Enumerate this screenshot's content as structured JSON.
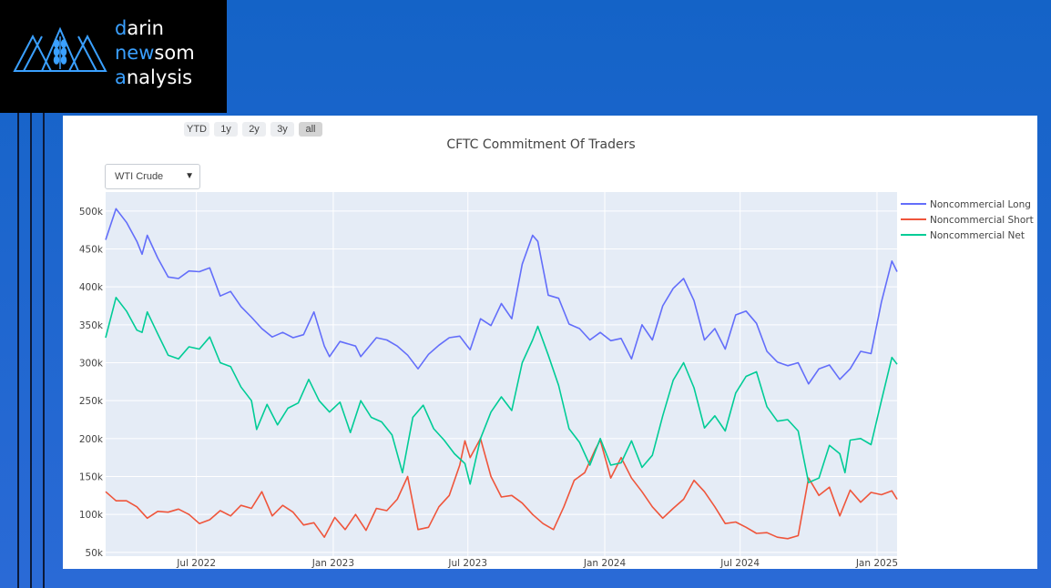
{
  "brand": {
    "line1_first": "d",
    "line1_rest": "arin",
    "line2_first": "ne",
    "line2_mid": "w",
    "line2_rest": "som",
    "line3_first": "a",
    "line3_rest": "nalysis"
  },
  "range_selector": [
    {
      "label": "YTD",
      "active": false
    },
    {
      "label": "1y",
      "active": false
    },
    {
      "label": "2y",
      "active": false
    },
    {
      "label": "3y",
      "active": false
    },
    {
      "label": "all",
      "active": true
    }
  ],
  "dropdown": {
    "selected": "WTI Crude",
    "arrow": "▼"
  },
  "colors": {
    "long": "#636efa",
    "short": "#ef553b",
    "net": "#00cc96",
    "plot_bg": "#e5ecf6"
  },
  "chart_data": {
    "type": "line",
    "title": "CFTC Commitment Of Traders",
    "xlabel": "",
    "ylabel": "",
    "ylim": [
      45000,
      525000
    ],
    "x_range": [
      "2022-03-01",
      "2025-01-28"
    ],
    "grid": true,
    "legend_position": "top-right",
    "y_ticks": [
      {
        "v": 50000,
        "label": "50k"
      },
      {
        "v": 100000,
        "label": "100k"
      },
      {
        "v": 150000,
        "label": "150k"
      },
      {
        "v": 200000,
        "label": "200k"
      },
      {
        "v": 250000,
        "label": "250k"
      },
      {
        "v": 300000,
        "label": "300k"
      },
      {
        "v": 350000,
        "label": "350k"
      },
      {
        "v": 400000,
        "label": "400k"
      },
      {
        "v": 450000,
        "label": "450k"
      },
      {
        "v": 500000,
        "label": "500k"
      }
    ],
    "x_ticks": [
      {
        "date": "2022-07-01",
        "label": "Jul 2022"
      },
      {
        "date": "2023-01-01",
        "label": "Jan 2023"
      },
      {
        "date": "2023-07-01",
        "label": "Jul 2023"
      },
      {
        "date": "2024-01-01",
        "label": "Jan 2024"
      },
      {
        "date": "2024-07-01",
        "label": "Jul 2024"
      },
      {
        "date": "2025-01-01",
        "label": "Jan 2025"
      }
    ],
    "series": [
      {
        "name": "Noncommercial Long",
        "color": "#636efa",
        "points": [
          [
            "2022-03-01",
            462000
          ],
          [
            "2022-03-15",
            503000
          ],
          [
            "2022-03-29",
            485000
          ],
          [
            "2022-04-12",
            460000
          ],
          [
            "2022-04-19",
            443000
          ],
          [
            "2022-04-26",
            468000
          ],
          [
            "2022-05-10",
            438000
          ],
          [
            "2022-05-24",
            413000
          ],
          [
            "2022-06-07",
            411000
          ],
          [
            "2022-06-21",
            421000
          ],
          [
            "2022-07-05",
            420000
          ],
          [
            "2022-07-19",
            425000
          ],
          [
            "2022-08-02",
            388000
          ],
          [
            "2022-08-16",
            394000
          ],
          [
            "2022-08-30",
            374000
          ],
          [
            "2022-09-13",
            360000
          ],
          [
            "2022-09-27",
            345000
          ],
          [
            "2022-10-11",
            334000
          ],
          [
            "2022-10-25",
            340000
          ],
          [
            "2022-11-08",
            333000
          ],
          [
            "2022-11-22",
            337000
          ],
          [
            "2022-12-06",
            367000
          ],
          [
            "2022-12-20",
            322000
          ],
          [
            "2022-12-27",
            308000
          ],
          [
            "2023-01-10",
            328000
          ],
          [
            "2023-01-31",
            322000
          ],
          [
            "2023-02-07",
            308000
          ],
          [
            "2023-02-28",
            333000
          ],
          [
            "2023-03-14",
            330000
          ],
          [
            "2023-03-28",
            322000
          ],
          [
            "2023-04-11",
            310000
          ],
          [
            "2023-04-25",
            292000
          ],
          [
            "2023-05-09",
            311000
          ],
          [
            "2023-05-23",
            323000
          ],
          [
            "2023-06-06",
            333000
          ],
          [
            "2023-06-20",
            335000
          ],
          [
            "2023-07-04",
            317000
          ],
          [
            "2023-07-18",
            358000
          ],
          [
            "2023-08-01",
            349000
          ],
          [
            "2023-08-15",
            378000
          ],
          [
            "2023-08-29",
            358000
          ],
          [
            "2023-09-12",
            430000
          ],
          [
            "2023-09-26",
            468000
          ],
          [
            "2023-10-03",
            460000
          ],
          [
            "2023-10-17",
            389000
          ],
          [
            "2023-10-31",
            385000
          ],
          [
            "2023-11-14",
            351000
          ],
          [
            "2023-11-28",
            345000
          ],
          [
            "2023-12-12",
            330000
          ],
          [
            "2023-12-26",
            340000
          ],
          [
            "2024-01-09",
            329000
          ],
          [
            "2024-01-23",
            332000
          ],
          [
            "2024-02-06",
            305000
          ],
          [
            "2024-02-20",
            350000
          ],
          [
            "2024-03-05",
            330000
          ],
          [
            "2024-03-19",
            375000
          ],
          [
            "2024-04-02",
            398000
          ],
          [
            "2024-04-16",
            411000
          ],
          [
            "2024-04-30",
            382000
          ],
          [
            "2024-05-14",
            330000
          ],
          [
            "2024-05-28",
            345000
          ],
          [
            "2024-06-11",
            318000
          ],
          [
            "2024-06-25",
            363000
          ],
          [
            "2024-07-09",
            368000
          ],
          [
            "2024-07-23",
            352000
          ],
          [
            "2024-08-06",
            315000
          ],
          [
            "2024-08-20",
            301000
          ],
          [
            "2024-09-03",
            296000
          ],
          [
            "2024-09-17",
            300000
          ],
          [
            "2024-10-01",
            272000
          ],
          [
            "2024-10-15",
            292000
          ],
          [
            "2024-10-29",
            297000
          ],
          [
            "2024-11-12",
            278000
          ],
          [
            "2024-11-26",
            292000
          ],
          [
            "2024-12-10",
            315000
          ],
          [
            "2024-12-24",
            312000
          ],
          [
            "2025-01-07",
            380000
          ],
          [
            "2025-01-21",
            434000
          ],
          [
            "2025-01-28",
            420000
          ]
        ]
      },
      {
        "name": "Noncommercial Short",
        "color": "#ef553b",
        "points": [
          [
            "2022-03-01",
            130000
          ],
          [
            "2022-03-15",
            118000
          ],
          [
            "2022-03-29",
            118000
          ],
          [
            "2022-04-12",
            110000
          ],
          [
            "2022-04-26",
            95000
          ],
          [
            "2022-05-10",
            104000
          ],
          [
            "2022-05-24",
            103000
          ],
          [
            "2022-06-07",
            107000
          ],
          [
            "2022-06-21",
            100000
          ],
          [
            "2022-07-05",
            88000
          ],
          [
            "2022-07-19",
            93000
          ],
          [
            "2022-08-02",
            105000
          ],
          [
            "2022-08-16",
            98000
          ],
          [
            "2022-08-30",
            112000
          ],
          [
            "2022-09-13",
            108000
          ],
          [
            "2022-09-27",
            130000
          ],
          [
            "2022-10-11",
            98000
          ],
          [
            "2022-10-25",
            112000
          ],
          [
            "2022-11-08",
            103000
          ],
          [
            "2022-11-22",
            86000
          ],
          [
            "2022-12-06",
            89000
          ],
          [
            "2022-12-20",
            70000
          ],
          [
            "2023-01-03",
            96000
          ],
          [
            "2023-01-17",
            80000
          ],
          [
            "2023-01-31",
            100000
          ],
          [
            "2023-02-14",
            79000
          ],
          [
            "2023-02-28",
            108000
          ],
          [
            "2023-03-14",
            105000
          ],
          [
            "2023-03-28",
            120000
          ],
          [
            "2023-04-11",
            150000
          ],
          [
            "2023-04-25",
            80000
          ],
          [
            "2023-05-09",
            83000
          ],
          [
            "2023-05-23",
            110000
          ],
          [
            "2023-06-06",
            125000
          ],
          [
            "2023-06-20",
            165000
          ],
          [
            "2023-06-27",
            197000
          ],
          [
            "2023-07-04",
            175000
          ],
          [
            "2023-07-18",
            200000
          ],
          [
            "2023-08-01",
            150000
          ],
          [
            "2023-08-15",
            123000
          ],
          [
            "2023-08-29",
            125000
          ],
          [
            "2023-09-12",
            115000
          ],
          [
            "2023-09-26",
            100000
          ],
          [
            "2023-10-10",
            88000
          ],
          [
            "2023-10-24",
            80000
          ],
          [
            "2023-11-07",
            110000
          ],
          [
            "2023-11-21",
            145000
          ],
          [
            "2023-12-05",
            155000
          ],
          [
            "2023-12-19",
            185000
          ],
          [
            "2023-12-26",
            198000
          ],
          [
            "2024-01-09",
            148000
          ],
          [
            "2024-01-23",
            175000
          ],
          [
            "2024-02-06",
            148000
          ],
          [
            "2024-02-20",
            130000
          ],
          [
            "2024-03-05",
            110000
          ],
          [
            "2024-03-19",
            95000
          ],
          [
            "2024-04-02",
            108000
          ],
          [
            "2024-04-16",
            120000
          ],
          [
            "2024-04-30",
            145000
          ],
          [
            "2024-05-14",
            130000
          ],
          [
            "2024-05-28",
            110000
          ],
          [
            "2024-06-11",
            88000
          ],
          [
            "2024-06-25",
            90000
          ],
          [
            "2024-07-09",
            83000
          ],
          [
            "2024-07-23",
            75000
          ],
          [
            "2024-08-06",
            76000
          ],
          [
            "2024-08-20",
            70000
          ],
          [
            "2024-09-03",
            68000
          ],
          [
            "2024-09-17",
            72000
          ],
          [
            "2024-10-01",
            148000
          ],
          [
            "2024-10-15",
            125000
          ],
          [
            "2024-10-29",
            136000
          ],
          [
            "2024-11-12",
            98000
          ],
          [
            "2024-11-26",
            132000
          ],
          [
            "2024-12-10",
            116000
          ],
          [
            "2024-12-24",
            129000
          ],
          [
            "2025-01-07",
            126000
          ],
          [
            "2025-01-21",
            131000
          ],
          [
            "2025-01-28",
            120000
          ]
        ]
      },
      {
        "name": "Noncommercial Net",
        "color": "#00cc96",
        "points": [
          [
            "2022-03-01",
            333000
          ],
          [
            "2022-03-15",
            386000
          ],
          [
            "2022-03-29",
            368000
          ],
          [
            "2022-04-12",
            343000
          ],
          [
            "2022-04-19",
            340000
          ],
          [
            "2022-04-26",
            367000
          ],
          [
            "2022-05-10",
            338000
          ],
          [
            "2022-05-24",
            310000
          ],
          [
            "2022-06-07",
            305000
          ],
          [
            "2022-06-21",
            321000
          ],
          [
            "2022-07-05",
            318000
          ],
          [
            "2022-07-19",
            334000
          ],
          [
            "2022-08-02",
            300000
          ],
          [
            "2022-08-16",
            295000
          ],
          [
            "2022-08-30",
            268000
          ],
          [
            "2022-09-13",
            250000
          ],
          [
            "2022-09-20",
            212000
          ],
          [
            "2022-10-04",
            245000
          ],
          [
            "2022-10-18",
            218000
          ],
          [
            "2022-11-01",
            240000
          ],
          [
            "2022-11-15",
            247000
          ],
          [
            "2022-11-29",
            278000
          ],
          [
            "2022-12-13",
            250000
          ],
          [
            "2022-12-27",
            235000
          ],
          [
            "2023-01-10",
            248000
          ],
          [
            "2023-01-24",
            208000
          ],
          [
            "2023-02-07",
            250000
          ],
          [
            "2023-02-21",
            228000
          ],
          [
            "2023-03-07",
            222000
          ],
          [
            "2023-03-21",
            205000
          ],
          [
            "2023-04-04",
            155000
          ],
          [
            "2023-04-18",
            228000
          ],
          [
            "2023-05-02",
            244000
          ],
          [
            "2023-05-16",
            213000
          ],
          [
            "2023-05-30",
            198000
          ],
          [
            "2023-06-13",
            180000
          ],
          [
            "2023-06-27",
            167000
          ],
          [
            "2023-07-04",
            140000
          ],
          [
            "2023-07-18",
            200000
          ],
          [
            "2023-08-01",
            235000
          ],
          [
            "2023-08-15",
            255000
          ],
          [
            "2023-08-29",
            237000
          ],
          [
            "2023-09-12",
            300000
          ],
          [
            "2023-09-26",
            330000
          ],
          [
            "2023-10-03",
            348000
          ],
          [
            "2023-10-17",
            310000
          ],
          [
            "2023-10-31",
            270000
          ],
          [
            "2023-11-14",
            213000
          ],
          [
            "2023-11-28",
            195000
          ],
          [
            "2023-12-12",
            165000
          ],
          [
            "2023-12-26",
            200000
          ],
          [
            "2024-01-09",
            165000
          ],
          [
            "2024-01-23",
            168000
          ],
          [
            "2024-02-06",
            197000
          ],
          [
            "2024-02-20",
            162000
          ],
          [
            "2024-03-05",
            178000
          ],
          [
            "2024-03-19",
            230000
          ],
          [
            "2024-04-02",
            277000
          ],
          [
            "2024-04-16",
            300000
          ],
          [
            "2024-04-30",
            267000
          ],
          [
            "2024-05-14",
            214000
          ],
          [
            "2024-05-28",
            230000
          ],
          [
            "2024-06-11",
            210000
          ],
          [
            "2024-06-25",
            260000
          ],
          [
            "2024-07-09",
            282000
          ],
          [
            "2024-07-23",
            288000
          ],
          [
            "2024-08-06",
            242000
          ],
          [
            "2024-08-20",
            223000
          ],
          [
            "2024-09-03",
            225000
          ],
          [
            "2024-09-17",
            210000
          ],
          [
            "2024-10-01",
            142000
          ],
          [
            "2024-10-15",
            148000
          ],
          [
            "2024-10-29",
            191000
          ],
          [
            "2024-11-12",
            180000
          ],
          [
            "2024-11-19",
            155000
          ],
          [
            "2024-11-26",
            198000
          ],
          [
            "2024-12-10",
            200000
          ],
          [
            "2024-12-24",
            192000
          ],
          [
            "2025-01-07",
            250000
          ],
          [
            "2025-01-21",
            307000
          ],
          [
            "2025-01-28",
            298000
          ]
        ]
      }
    ]
  }
}
